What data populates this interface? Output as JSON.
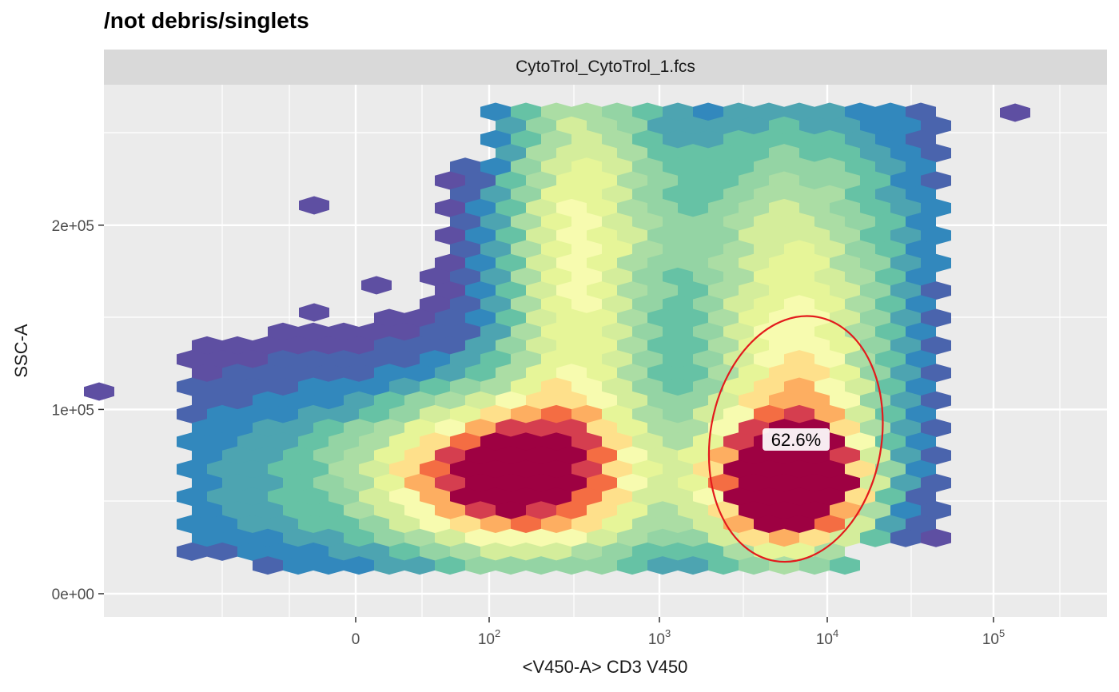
{
  "page": {
    "title": "/not debris/singlets",
    "facet_label": "CytoTrol_CytoTrol_1.fcs"
  },
  "chart_data": {
    "type": "hexbin",
    "title": "/not debris/singlets",
    "facet": "CytoTrol_CytoTrol_1.fcs",
    "xlabel": "<V450-A> CD3 V450",
    "ylabel": "SSC-A",
    "x_scale": "flowjo_biexp",
    "x_ticks": [
      "0",
      "10^2",
      "10^3",
      "10^4",
      "10^5"
    ],
    "y_ticks": [
      "0e+00",
      "1e+05",
      "2e+05"
    ],
    "ylim": [
      -60000,
      270000
    ],
    "grid": true,
    "colormap": "Spectral (reversed): low density purple/blue, high density red",
    "populations": [
      {
        "name": "CD3-negative cluster",
        "center_x": 120,
        "center_y": 65000
      },
      {
        "name": "CD3-positive cluster",
        "center_x": 6000,
        "center_y": 60000
      }
    ],
    "gate": {
      "shape": "ellipse",
      "color": "#e31a1c",
      "center_x": 6500,
      "center_y": 84000,
      "label": "62.6%"
    }
  }
}
